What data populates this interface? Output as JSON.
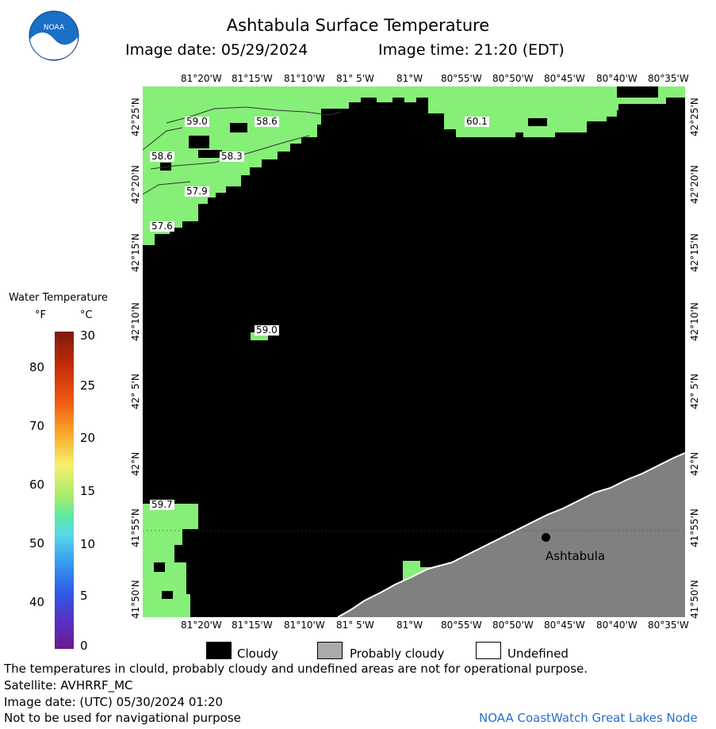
{
  "header": {
    "title": "Ashtabula Surface Temperature",
    "image_date": "Image date: 05/29/2024",
    "image_time": "Image time: 21:20 (EDT)"
  },
  "map": {
    "lon_labels_top": [
      "81°20'W",
      "81°15'W",
      "81°10'W",
      "81° 5'W",
      "81°W",
      "80°55'W",
      "80°50'W",
      "80°45'W",
      "80°40'W",
      "80°35'W"
    ],
    "lon_labels_bottom": [
      "81°20'W",
      "81°15'W",
      "81°10'W",
      "81° 5'W",
      "81°W",
      "80°55'W",
      "80°50'W",
      "80°45'W",
      "80°40'W",
      "80°35'W"
    ],
    "lat_labels": [
      "42°25'N",
      "42°20'N",
      "42°15'N",
      "42°10'N",
      "42° 5'N",
      "42°N",
      "41°55'N",
      "41°50'N"
    ],
    "city_label": "Ashtabula",
    "temp_labels": [
      "59.0",
      "58.6",
      "60.1",
      "58.6",
      "58.3",
      "57.9",
      "57.6",
      "59.0",
      "59.7"
    ],
    "colors": {
      "cloudy": "#000000",
      "probably_cloudy": "#808080",
      "water_60F": "#88f07a",
      "water_59F": "#7fec74"
    }
  },
  "legend": {
    "title": "Water Temperature",
    "unit_f": "°F",
    "unit_c": "°C",
    "f_ticks": [
      "80",
      "70",
      "60",
      "50",
      "40"
    ],
    "c_ticks": [
      "30",
      "25",
      "20",
      "15",
      "10",
      "5",
      "0"
    ]
  },
  "key": {
    "cloudy": "Cloudy",
    "probably_cloudy": "Probably cloudy",
    "undefined": "Undefined"
  },
  "footer": {
    "line1": "The temperatures in clould, probably cloudy and undefined areas are not for operational purpose.",
    "line2": "Satellite: AVHRRF_MC",
    "line3": "Image date: (UTC) 05/30/2024  01:20",
    "line4": "Not to be used for navigational purpose",
    "credit": "NOAA CoastWatch Great Lakes Node"
  }
}
